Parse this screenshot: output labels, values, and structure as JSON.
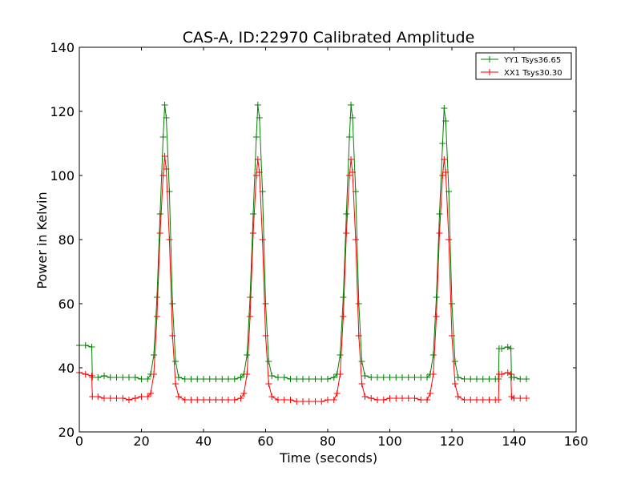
{
  "chart_data": {
    "type": "line",
    "title": "CAS-A, ID:22970 Calibrated Amplitude",
    "xlabel": "Time (seconds)",
    "ylabel": "Power in Kelvin",
    "xlim": [
      0,
      160
    ],
    "ylim": [
      20,
      140
    ],
    "xticks": [
      "0",
      "20",
      "40",
      "60",
      "80",
      "100",
      "120",
      "140",
      "160"
    ],
    "yticks": [
      "20",
      "40",
      "60",
      "80",
      "100",
      "120",
      "140"
    ],
    "grid": false,
    "legend_position": "top-right",
    "marker": "+",
    "series": [
      {
        "name": "YY1 Tsys36.65",
        "color": "#008000",
        "x": [
          0,
          2,
          4,
          4.2,
          6,
          8,
          10,
          12,
          14,
          16,
          18,
          20,
          22,
          23,
          24,
          25,
          26,
          27,
          27.5,
          28,
          29,
          30,
          31,
          32,
          34,
          36,
          38,
          40,
          42,
          44,
          46,
          48,
          50,
          52,
          53,
          54,
          55,
          56,
          57,
          57.5,
          58,
          59,
          60,
          61,
          62,
          64,
          66,
          68,
          70,
          72,
          74,
          76,
          78,
          80,
          82,
          83,
          84,
          85,
          86,
          87,
          87.5,
          88,
          89,
          90,
          91,
          92,
          94,
          96,
          98,
          100,
          102,
          104,
          106,
          108,
          110,
          112,
          113,
          114,
          115,
          116,
          117,
          117.5,
          118,
          119,
          120,
          121,
          122,
          124,
          126,
          128,
          130,
          132,
          134,
          135,
          135.2,
          136,
          138,
          139,
          139.2,
          140,
          142,
          144
        ],
        "y": [
          47,
          47,
          46.5,
          37,
          37,
          37.5,
          37,
          37,
          37,
          37,
          37,
          36.5,
          36.5,
          38,
          44,
          62,
          88,
          112,
          122,
          118,
          95,
          60,
          42,
          37,
          36.5,
          36.5,
          36.5,
          36.5,
          36.5,
          36.5,
          36.5,
          36.5,
          36.5,
          37,
          38,
          44,
          62,
          88,
          112,
          122,
          118,
          95,
          60,
          42,
          37.5,
          37,
          37,
          36.5,
          36.5,
          36.5,
          36.5,
          36.5,
          36.5,
          36.5,
          37,
          38,
          44,
          62,
          88,
          112,
          122,
          118,
          95,
          60,
          42,
          37.5,
          37,
          37,
          37,
          37,
          37,
          37,
          37,
          37,
          37,
          37,
          38,
          44,
          62,
          88,
          110,
          121,
          117,
          95,
          60,
          42,
          37,
          36.5,
          36.5,
          36.5,
          36.5,
          36.5,
          36.5,
          36.5,
          46,
          46,
          46.5,
          46,
          37,
          37,
          36.5,
          36.5
        ]
      },
      {
        "name": "XX1 Tsys30.30",
        "color": "#ff0000",
        "x": [
          0,
          2,
          4,
          4.2,
          6,
          8,
          10,
          12,
          14,
          16,
          18,
          20,
          22,
          23,
          24,
          25,
          26,
          27,
          27.5,
          28,
          29,
          30,
          31,
          32,
          34,
          36,
          38,
          40,
          42,
          44,
          46,
          48,
          50,
          52,
          53,
          54,
          55,
          56,
          57,
          57.5,
          58,
          59,
          60,
          61,
          62,
          64,
          66,
          68,
          70,
          72,
          74,
          76,
          78,
          80,
          82,
          83,
          84,
          85,
          86,
          87,
          87.5,
          88,
          89,
          90,
          91,
          92,
          94,
          96,
          98,
          100,
          102,
          104,
          106,
          108,
          110,
          112,
          113,
          114,
          115,
          116,
          117,
          117.5,
          118,
          119,
          120,
          121,
          122,
          124,
          126,
          128,
          130,
          132,
          134,
          135,
          135.2,
          136,
          138,
          139,
          139.2,
          140,
          142,
          144
        ],
        "y": [
          38.5,
          38,
          37.5,
          31,
          31,
          30.5,
          30.5,
          30.5,
          30.5,
          30,
          30.5,
          31,
          31,
          32,
          38,
          56,
          82,
          100,
          106,
          102,
          80,
          50,
          35,
          31,
          30,
          30,
          30,
          30,
          30,
          30,
          30,
          30,
          30,
          30.5,
          32,
          38,
          56,
          82,
          100,
          105,
          101,
          80,
          50,
          35,
          31,
          30,
          30,
          30,
          29.5,
          29.5,
          29.5,
          29.5,
          29.5,
          30,
          30,
          32,
          38,
          56,
          82,
          100,
          105,
          101,
          80,
          50,
          35,
          31,
          30.5,
          30,
          30,
          30.5,
          30.5,
          30.5,
          30.5,
          30.5,
          30,
          30,
          32,
          38,
          56,
          82,
          100,
          105,
          101,
          80,
          50,
          35,
          31,
          30,
          30,
          30,
          30,
          30,
          30,
          30,
          38,
          38,
          38.5,
          38,
          31,
          30.5,
          30.5,
          30.5
        ]
      }
    ]
  }
}
